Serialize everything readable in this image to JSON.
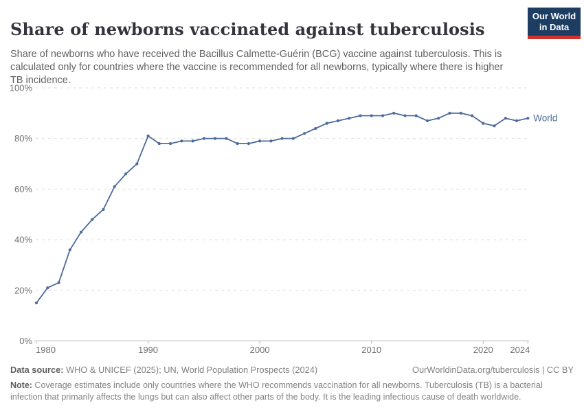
{
  "header": {
    "title": "Share of newborns vaccinated against tuberculosis",
    "subtitle": "Share of newborns who have received the Bacillus Calmette-Guérin (BCG) vaccine against tuberculosis. This is calculated only for countries where the vaccine is recommended for all newborns, typically where there is higher TB incidence.",
    "logo": {
      "line1": "Our World",
      "line2": "in Data"
    }
  },
  "chart_data": {
    "type": "line",
    "title": "Share of newborns vaccinated against tuberculosis",
    "xlabel": "",
    "ylabel": "",
    "xlim": [
      1980,
      2024
    ],
    "ylim": [
      0,
      100
    ],
    "grid": "horizontal-dashed",
    "legend_position": "end-of-line-label",
    "xticks": [
      1980,
      1990,
      2000,
      2010,
      2020,
      2024
    ],
    "ytick_values": [
      0,
      20,
      40,
      60,
      80,
      100
    ],
    "ytick_labels": [
      "0%",
      "20%",
      "40%",
      "60%",
      "80%",
      "100%"
    ],
    "series": [
      {
        "name": "World",
        "color": "#4c6a9c",
        "x": [
          1980,
          1981,
          1982,
          1983,
          1984,
          1985,
          1986,
          1987,
          1988,
          1989,
          1990,
          1991,
          1992,
          1993,
          1994,
          1995,
          1996,
          1997,
          1998,
          1999,
          2000,
          2001,
          2002,
          2003,
          2004,
          2005,
          2006,
          2007,
          2008,
          2009,
          2010,
          2011,
          2012,
          2013,
          2014,
          2015,
          2016,
          2017,
          2018,
          2019,
          2020,
          2021,
          2022,
          2023,
          2024
        ],
        "values": [
          15,
          21,
          23,
          36,
          43,
          48,
          52,
          61,
          66,
          70,
          81,
          78,
          78,
          79,
          79,
          80,
          80,
          80,
          78,
          78,
          79,
          79,
          80,
          80,
          82,
          84,
          86,
          87,
          88,
          89,
          89,
          89,
          90,
          89,
          89,
          87,
          88,
          90,
          90,
          89,
          86,
          85,
          88,
          87,
          88
        ]
      }
    ],
    "end_label": "World"
  },
  "footer": {
    "datasource_label": "Data source:",
    "datasource": " WHO & UNICEF (2025); UN, World Population Prospects (2024)",
    "link": "OurWorldinData.org/tuberculosis | CC BY",
    "note_label": "Note:",
    "note": " Coverage estimates include only countries where the WHO recommends vaccination for all newborns. Tuberculosis (TB) is a bacterial infection that primarily affects the lungs but can also affect other parts of the body. It is the leading infectious cause of death worldwide."
  },
  "colors": {
    "line": "#4c6a9c",
    "grid": "#dcdcdc",
    "axis": "#b5b5b5",
    "tick_label": "#6f6f6f",
    "title": "#33343d",
    "subtitle": "#616161",
    "footer": "#808080",
    "logo_bg": "#1d3d63",
    "logo_stripe": "#d0342c"
  }
}
